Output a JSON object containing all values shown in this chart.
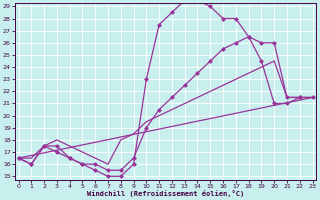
{
  "xlabel": "Windchill (Refroidissement éolien,°C)",
  "bg_color": "#c8eeee",
  "line_color": "#993399",
  "grid_color": "#ffffff",
  "xlim": [
    0,
    23
  ],
  "ylim": [
    15,
    29
  ],
  "xticks": [
    0,
    1,
    2,
    3,
    4,
    5,
    6,
    7,
    8,
    9,
    10,
    11,
    12,
    13,
    14,
    15,
    16,
    17,
    18,
    19,
    20,
    21,
    22,
    23
  ],
  "yticks": [
    15,
    16,
    17,
    18,
    19,
    20,
    21,
    22,
    23,
    24,
    25,
    26,
    27,
    28,
    29
  ],
  "curve1_x": [
    0,
    1,
    2,
    3,
    4,
    5,
    6,
    7,
    8,
    9,
    10,
    11,
    12,
    13,
    14,
    15,
    16,
    17,
    18,
    19,
    20,
    21,
    22
  ],
  "curve1_y": [
    16.5,
    16.0,
    17.5,
    17.0,
    16.5,
    16.0,
    15.5,
    15.0,
    15.0,
    16.0,
    23.0,
    27.5,
    28.5,
    29.5,
    29.5,
    29.0,
    28.0,
    28.0,
    26.5,
    24.5,
    21.0,
    21.0,
    21.5
  ],
  "curve2_x": [
    0,
    1,
    2,
    3,
    4,
    5,
    6,
    7,
    8,
    9,
    10,
    11,
    12,
    13,
    14,
    15,
    16,
    17,
    18,
    19,
    20,
    21,
    22,
    23
  ],
  "curve2_y": [
    16.5,
    16.0,
    17.5,
    17.5,
    16.5,
    16.0,
    16.0,
    15.5,
    15.5,
    16.5,
    19.0,
    20.5,
    21.5,
    22.5,
    23.5,
    24.5,
    25.5,
    26.0,
    26.5,
    26.0,
    26.0,
    21.5,
    21.5,
    21.5
  ],
  "curve3_x": [
    0,
    23
  ],
  "curve3_y": [
    16.5,
    21.5
  ],
  "curve4_x": [
    0,
    1,
    2,
    3,
    4,
    5,
    6,
    7,
    8,
    9,
    10,
    11,
    12,
    13,
    14,
    15,
    16,
    17,
    18,
    19,
    20,
    21,
    22,
    23
  ],
  "curve4_y": [
    16.5,
    16.5,
    17.5,
    18.0,
    17.5,
    17.0,
    16.5,
    16.0,
    18.0,
    18.5,
    19.5,
    20.0,
    20.5,
    21.0,
    21.5,
    22.0,
    22.5,
    23.0,
    23.5,
    24.0,
    24.5,
    21.5,
    21.5,
    21.5
  ]
}
